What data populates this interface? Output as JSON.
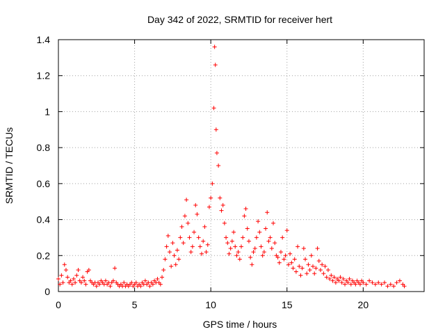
{
  "chart_data": {
    "type": "scatter",
    "title": "Day 342 of 2022, SRMTID for receiver hert",
    "xlabel": "GPS time / hours",
    "ylabel": "SRMTID / TECUs",
    "xlim": [
      0,
      24
    ],
    "ylim": [
      0,
      1.4
    ],
    "x_ticks": [
      0,
      5,
      10,
      15,
      20
    ],
    "x_tick_labels": [
      "0",
      "5",
      "10",
      "15",
      "20"
    ],
    "y_ticks": [
      0,
      0.2,
      0.4,
      0.6,
      0.8,
      1.0,
      1.2,
      1.4
    ],
    "y_tick_labels": [
      "0",
      "0.2",
      "0.4",
      "0.6",
      "0.8",
      "1",
      "1.2",
      "1.4"
    ],
    "grid": true,
    "marker": "+",
    "series": [
      {
        "name": "SRMTID",
        "color": "#ff0000",
        "points": [
          [
            0.0,
            0.07
          ],
          [
            0.1,
            0.04
          ],
          [
            0.2,
            0.09
          ],
          [
            0.3,
            0.05
          ],
          [
            0.4,
            0.15
          ],
          [
            0.5,
            0.12
          ],
          [
            0.6,
            0.08
          ],
          [
            0.7,
            0.05
          ],
          [
            0.8,
            0.06
          ],
          [
            0.9,
            0.04
          ],
          [
            1.0,
            0.07
          ],
          [
            1.1,
            0.05
          ],
          [
            1.2,
            0.09
          ],
          [
            1.3,
            0.12
          ],
          [
            1.4,
            0.06
          ],
          [
            1.5,
            0.05
          ],
          [
            1.6,
            0.08
          ],
          [
            1.7,
            0.06
          ],
          [
            1.8,
            0.04
          ],
          [
            1.9,
            0.11
          ],
          [
            2.0,
            0.12
          ],
          [
            2.1,
            0.06
          ],
          [
            2.2,
            0.05
          ],
          [
            2.3,
            0.04
          ],
          [
            2.4,
            0.05
          ],
          [
            2.5,
            0.03
          ],
          [
            2.6,
            0.05
          ],
          [
            2.7,
            0.04
          ],
          [
            2.8,
            0.06
          ],
          [
            2.9,
            0.05
          ],
          [
            3.0,
            0.04
          ],
          [
            3.1,
            0.06
          ],
          [
            3.2,
            0.04
          ],
          [
            3.3,
            0.05
          ],
          [
            3.4,
            0.03
          ],
          [
            3.5,
            0.05
          ],
          [
            3.6,
            0.06
          ],
          [
            3.7,
            0.13
          ],
          [
            3.8,
            0.05
          ],
          [
            3.9,
            0.04
          ],
          [
            4.0,
            0.03
          ],
          [
            4.1,
            0.04
          ],
          [
            4.2,
            0.03
          ],
          [
            4.3,
            0.05
          ],
          [
            4.4,
            0.03
          ],
          [
            4.5,
            0.04
          ],
          [
            4.6,
            0.03
          ],
          [
            4.7,
            0.04
          ],
          [
            4.8,
            0.05
          ],
          [
            4.9,
            0.03
          ],
          [
            5.0,
            0.04
          ],
          [
            5.1,
            0.05
          ],
          [
            5.2,
            0.03
          ],
          [
            5.3,
            0.04
          ],
          [
            5.4,
            0.03
          ],
          [
            5.5,
            0.05
          ],
          [
            5.6,
            0.04
          ],
          [
            5.7,
            0.06
          ],
          [
            5.8,
            0.04
          ],
          [
            5.9,
            0.05
          ],
          [
            6.0,
            0.03
          ],
          [
            6.1,
            0.05
          ],
          [
            6.2,
            0.04
          ],
          [
            6.3,
            0.06
          ],
          [
            6.4,
            0.05
          ],
          [
            6.5,
            0.07
          ],
          [
            6.6,
            0.05
          ],
          [
            6.7,
            0.04
          ],
          [
            6.8,
            0.08
          ],
          [
            6.9,
            0.12
          ],
          [
            7.0,
            0.18
          ],
          [
            7.1,
            0.25
          ],
          [
            7.2,
            0.31
          ],
          [
            7.3,
            0.22
          ],
          [
            7.4,
            0.14
          ],
          [
            7.5,
            0.27
          ],
          [
            7.6,
            0.2
          ],
          [
            7.7,
            0.15
          ],
          [
            7.8,
            0.23
          ],
          [
            7.9,
            0.18
          ],
          [
            8.0,
            0.3
          ],
          [
            8.1,
            0.36
          ],
          [
            8.2,
            0.27
          ],
          [
            8.3,
            0.42
          ],
          [
            8.4,
            0.51
          ],
          [
            8.5,
            0.38
          ],
          [
            8.6,
            0.3
          ],
          [
            8.7,
            0.22
          ],
          [
            8.8,
            0.25
          ],
          [
            8.9,
            0.33
          ],
          [
            9.0,
            0.48
          ],
          [
            9.1,
            0.43
          ],
          [
            9.2,
            0.3
          ],
          [
            9.3,
            0.25
          ],
          [
            9.4,
            0.21
          ],
          [
            9.5,
            0.28
          ],
          [
            9.6,
            0.36
          ],
          [
            9.7,
            0.22
          ],
          [
            9.8,
            0.26
          ],
          [
            9.9,
            0.47
          ],
          [
            10.0,
            0.52
          ],
          [
            10.1,
            0.6
          ],
          [
            10.2,
            1.02
          ],
          [
            10.25,
            1.36
          ],
          [
            10.3,
            1.26
          ],
          [
            10.35,
            0.9
          ],
          [
            10.4,
            0.77
          ],
          [
            10.5,
            0.7
          ],
          [
            10.6,
            0.52
          ],
          [
            10.7,
            0.45
          ],
          [
            10.8,
            0.48
          ],
          [
            10.9,
            0.38
          ],
          [
            11.0,
            0.3
          ],
          [
            11.1,
            0.27
          ],
          [
            11.2,
            0.21
          ],
          [
            11.3,
            0.24
          ],
          [
            11.4,
            0.28
          ],
          [
            11.5,
            0.33
          ],
          [
            11.6,
            0.25
          ],
          [
            11.7,
            0.2
          ],
          [
            11.8,
            0.22
          ],
          [
            11.9,
            0.18
          ],
          [
            12.0,
            0.25
          ],
          [
            12.1,
            0.3
          ],
          [
            12.2,
            0.42
          ],
          [
            12.3,
            0.46
          ],
          [
            12.4,
            0.35
          ],
          [
            12.5,
            0.28
          ],
          [
            12.6,
            0.19
          ],
          [
            12.7,
            0.15
          ],
          [
            12.8,
            0.22
          ],
          [
            12.9,
            0.24
          ],
          [
            13.0,
            0.3
          ],
          [
            13.1,
            0.39
          ],
          [
            13.2,
            0.33
          ],
          [
            13.3,
            0.25
          ],
          [
            13.4,
            0.2
          ],
          [
            13.5,
            0.22
          ],
          [
            13.6,
            0.35
          ],
          [
            13.7,
            0.44
          ],
          [
            13.8,
            0.28
          ],
          [
            13.9,
            0.3
          ],
          [
            14.0,
            0.24
          ],
          [
            14.1,
            0.38
          ],
          [
            14.2,
            0.27
          ],
          [
            14.3,
            0.2
          ],
          [
            14.4,
            0.19
          ],
          [
            14.5,
            0.16
          ],
          [
            14.6,
            0.22
          ],
          [
            14.7,
            0.3
          ],
          [
            14.8,
            0.18
          ],
          [
            14.9,
            0.2
          ],
          [
            15.0,
            0.34
          ],
          [
            15.1,
            0.15
          ],
          [
            15.2,
            0.21
          ],
          [
            15.3,
            0.16
          ],
          [
            15.4,
            0.13
          ],
          [
            15.5,
            0.18
          ],
          [
            15.6,
            0.11
          ],
          [
            15.7,
            0.25
          ],
          [
            15.8,
            0.14
          ],
          [
            15.9,
            0.09
          ],
          [
            16.0,
            0.13
          ],
          [
            16.1,
            0.24
          ],
          [
            16.2,
            0.18
          ],
          [
            16.3,
            0.1
          ],
          [
            16.4,
            0.15
          ],
          [
            16.5,
            0.12
          ],
          [
            16.6,
            0.2
          ],
          [
            16.7,
            0.14
          ],
          [
            16.8,
            0.1
          ],
          [
            16.9,
            0.13
          ],
          [
            17.0,
            0.24
          ],
          [
            17.1,
            0.17
          ],
          [
            17.2,
            0.12
          ],
          [
            17.3,
            0.15
          ],
          [
            17.4,
            0.1
          ],
          [
            17.5,
            0.14
          ],
          [
            17.6,
            0.08
          ],
          [
            17.7,
            0.12
          ],
          [
            17.8,
            0.07
          ],
          [
            17.9,
            0.09
          ],
          [
            18.0,
            0.06
          ],
          [
            18.1,
            0.08
          ],
          [
            18.2,
            0.05
          ],
          [
            18.3,
            0.07
          ],
          [
            18.4,
            0.06
          ],
          [
            18.5,
            0.08
          ],
          [
            18.6,
            0.05
          ],
          [
            18.7,
            0.07
          ],
          [
            18.8,
            0.04
          ],
          [
            18.9,
            0.06
          ],
          [
            19.0,
            0.05
          ],
          [
            19.1,
            0.07
          ],
          [
            19.2,
            0.04
          ],
          [
            19.3,
            0.06
          ],
          [
            19.4,
            0.05
          ],
          [
            19.5,
            0.04
          ],
          [
            19.6,
            0.06
          ],
          [
            19.7,
            0.05
          ],
          [
            19.8,
            0.04
          ],
          [
            19.9,
            0.06
          ],
          [
            20.0,
            0.05
          ],
          [
            20.2,
            0.04
          ],
          [
            20.4,
            0.06
          ],
          [
            20.6,
            0.05
          ],
          [
            20.8,
            0.04
          ],
          [
            21.0,
            0.05
          ],
          [
            21.2,
            0.04
          ],
          [
            21.4,
            0.05
          ],
          [
            21.6,
            0.03
          ],
          [
            21.8,
            0.04
          ],
          [
            22.0,
            0.03
          ],
          [
            22.2,
            0.05
          ],
          [
            22.4,
            0.06
          ],
          [
            22.6,
            0.04
          ],
          [
            22.7,
            0.03
          ]
        ]
      }
    ]
  }
}
